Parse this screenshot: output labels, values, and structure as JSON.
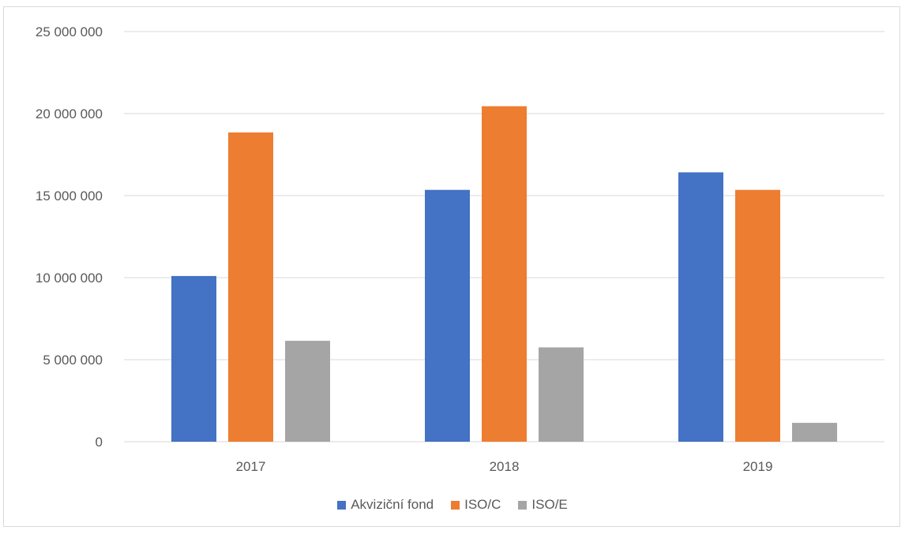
{
  "chart_data": {
    "type": "bar",
    "categories": [
      "2017",
      "2018",
      "2019"
    ],
    "series": [
      {
        "name": "Akviziční fond",
        "color": "#4472c4",
        "values": [
          10100000,
          15350000,
          16420000
        ]
      },
      {
        "name": "ISO/C",
        "color": "#ed7d31",
        "values": [
          18850000,
          20450000,
          15350000
        ]
      },
      {
        "name": "ISO/E",
        "color": "#a5a5a5",
        "values": [
          6150000,
          5750000,
          1150000
        ]
      }
    ],
    "ylim": [
      0,
      25000000
    ],
    "yticks": [
      "0",
      "5 000 000",
      "10 000 000",
      "15 000 000",
      "20 000 000",
      "25 000 000"
    ],
    "ytick_values": [
      0,
      5000000,
      10000000,
      15000000,
      20000000,
      25000000
    ],
    "grid": true,
    "legend_position": "bottom",
    "title": "",
    "xlabel": "",
    "ylabel": ""
  }
}
